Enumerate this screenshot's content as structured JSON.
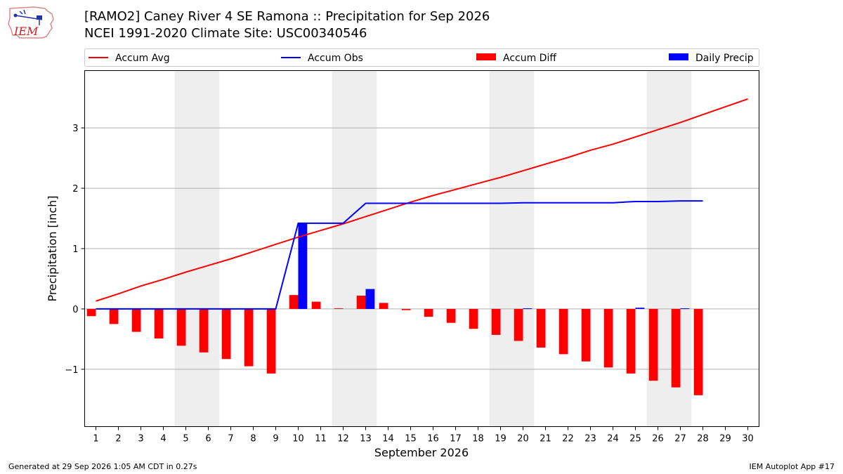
{
  "header": {
    "logo_text": "IEM",
    "title_line1": "[RAMO2] Caney River 4 SE Ramona :: Precipitation for Sep 2026",
    "title_line2": "NCEI 1991-2020 Climate Site: USC00340546"
  },
  "footer": {
    "left": "Generated at 29 Sep 2026 1:05 AM CDT in 0.27s",
    "right": "IEM Autoplot App #17"
  },
  "colors": {
    "avg": "#ff0000",
    "obs": "#0000ff",
    "diff": "#ff0000",
    "daily": "#0000ff",
    "weekend_shade": "#eeeeee",
    "grid": "#b0b0b0"
  },
  "chart_data": {
    "type": "bar",
    "xlabel": "September 2026",
    "ylabel": "Precipitation [inch]",
    "ylim": [
      -1.95,
      3.95
    ],
    "xlim": [
      0.5,
      30.5
    ],
    "yticks": [
      -1,
      0,
      1,
      2,
      3
    ],
    "ytick_labels": [
      "−1",
      "0",
      "1",
      "2",
      "3"
    ],
    "x": [
      1,
      2,
      3,
      4,
      5,
      6,
      7,
      8,
      9,
      10,
      11,
      12,
      13,
      14,
      15,
      16,
      17,
      18,
      19,
      20,
      21,
      22,
      23,
      24,
      25,
      26,
      27,
      28,
      29,
      30
    ],
    "xtick_labels": [
      "1",
      "2",
      "3",
      "4",
      "5",
      "6",
      "7",
      "8",
      "9",
      "10",
      "11",
      "12",
      "13",
      "14",
      "15",
      "16",
      "17",
      "18",
      "19",
      "20",
      "21",
      "22",
      "23",
      "24",
      "25",
      "26",
      "27",
      "28",
      "29",
      "30"
    ],
    "grid": "horizontal",
    "legend_position": "top",
    "shaded_weekends": [
      [
        4.5,
        6.5
      ],
      [
        11.5,
        13.5
      ],
      [
        18.5,
        20.5
      ],
      [
        25.5,
        27.5
      ]
    ],
    "series": [
      {
        "name": "Accum Avg",
        "kind": "line",
        "x": [
          1,
          2,
          3,
          4,
          5,
          6,
          7,
          8,
          9,
          10,
          11,
          12,
          13,
          14,
          15,
          16,
          17,
          18,
          19,
          20,
          21,
          22,
          23,
          24,
          25,
          26,
          27,
          28,
          29,
          30
        ],
        "values": [
          0.13,
          0.25,
          0.38,
          0.49,
          0.61,
          0.72,
          0.83,
          0.95,
          1.07,
          1.19,
          1.3,
          1.41,
          1.53,
          1.65,
          1.77,
          1.88,
          1.98,
          2.08,
          2.18,
          2.29,
          2.4,
          2.51,
          2.63,
          2.73,
          2.85,
          2.97,
          3.09,
          3.22,
          3.35,
          3.48
        ]
      },
      {
        "name": "Accum Obs",
        "kind": "line",
        "x": [
          1,
          2,
          3,
          4,
          5,
          6,
          7,
          8,
          9,
          10,
          11,
          12,
          13,
          14,
          15,
          16,
          17,
          18,
          19,
          20,
          21,
          22,
          23,
          24,
          25,
          26,
          27,
          28
        ],
        "values": [
          0,
          0,
          0,
          0,
          0,
          0,
          0,
          0,
          0,
          1.42,
          1.42,
          1.42,
          1.75,
          1.75,
          1.75,
          1.75,
          1.75,
          1.75,
          1.75,
          1.76,
          1.76,
          1.76,
          1.76,
          1.76,
          1.78,
          1.78,
          1.79,
          1.79
        ]
      },
      {
        "name": "Accum Diff",
        "kind": "bar",
        "x": [
          1,
          2,
          3,
          4,
          5,
          6,
          7,
          8,
          9,
          10,
          11,
          12,
          13,
          14,
          15,
          16,
          17,
          18,
          19,
          20,
          21,
          22,
          23,
          24,
          25,
          26,
          27,
          28
        ],
        "values": [
          -0.12,
          -0.25,
          -0.38,
          -0.49,
          -0.61,
          -0.72,
          -0.83,
          -0.95,
          -1.07,
          0.23,
          0.12,
          0.01,
          0.22,
          0.1,
          -0.02,
          -0.13,
          -0.23,
          -0.33,
          -0.43,
          -0.53,
          -0.64,
          -0.75,
          -0.87,
          -0.97,
          -1.07,
          -1.19,
          -1.3,
          -1.43
        ]
      },
      {
        "name": "Daily Precip",
        "kind": "bar",
        "x": [
          10,
          13,
          20,
          25,
          27
        ],
        "values": [
          1.42,
          0.33,
          0.01,
          0.02,
          0.01
        ]
      }
    ]
  }
}
